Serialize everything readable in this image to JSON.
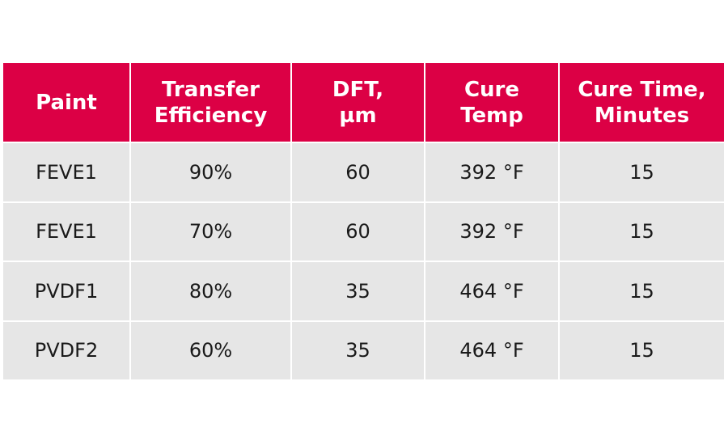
{
  "colors": {
    "header_background": "#dc0045",
    "row_background": "#e6e6e6",
    "header_text": "#ffffff",
    "body_text": "#1a1a1a"
  },
  "table": {
    "headers": [
      [
        "Paint"
      ],
      [
        "Transfer",
        "Efficiency"
      ],
      [
        "DFT,",
        "µm"
      ],
      [
        "Cure",
        "Temp"
      ],
      [
        "Cure Time,",
        "Minutes"
      ]
    ],
    "rows": [
      [
        "FEVE1",
        "90%",
        "60",
        "392 °F",
        "15"
      ],
      [
        "FEVE1",
        "70%",
        "60",
        "392 °F",
        "15"
      ],
      [
        "PVDF1",
        "80%",
        "35",
        "464 °F",
        "15"
      ],
      [
        "PVDF2",
        "60%",
        "35",
        "464 °F",
        "15"
      ]
    ]
  }
}
